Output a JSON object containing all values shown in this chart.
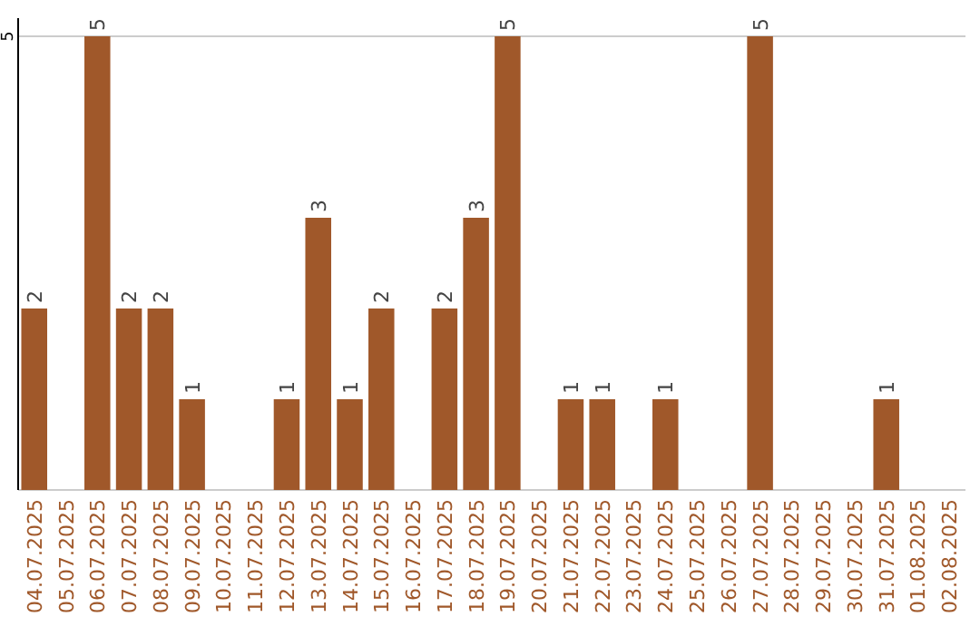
{
  "chart_data": {
    "type": "bar",
    "categories": [
      "04.07.2025",
      "05.07.2025",
      "06.07.2025",
      "07.07.2025",
      "08.07.2025",
      "09.07.2025",
      "10.07.2025",
      "11.07.2025",
      "12.07.2025",
      "13.07.2025",
      "14.07.2025",
      "15.07.2025",
      "16.07.2025",
      "17.07.2025",
      "18.07.2025",
      "19.07.2025",
      "20.07.2025",
      "21.07.2025",
      "22.07.2025",
      "23.07.2025",
      "24.07.2025",
      "25.07.2025",
      "26.07.2025",
      "27.07.2025",
      "28.07.2025",
      "29.07.2025",
      "30.07.2025",
      "31.07.2025",
      "01.08.2025",
      "02.08.2025"
    ],
    "values": [
      2,
      null,
      5,
      2,
      2,
      1,
      null,
      null,
      1,
      3,
      1,
      2,
      null,
      2,
      3,
      5,
      null,
      1,
      1,
      null,
      1,
      null,
      null,
      5,
      null,
      null,
      null,
      1,
      null,
      null
    ],
    "color": "#a0582a",
    "ylim": [
      0,
      5.2
    ],
    "yticks": [
      {
        "value": 0,
        "label": null
      },
      5
    ],
    "grid": "y",
    "data_labels": true
  }
}
